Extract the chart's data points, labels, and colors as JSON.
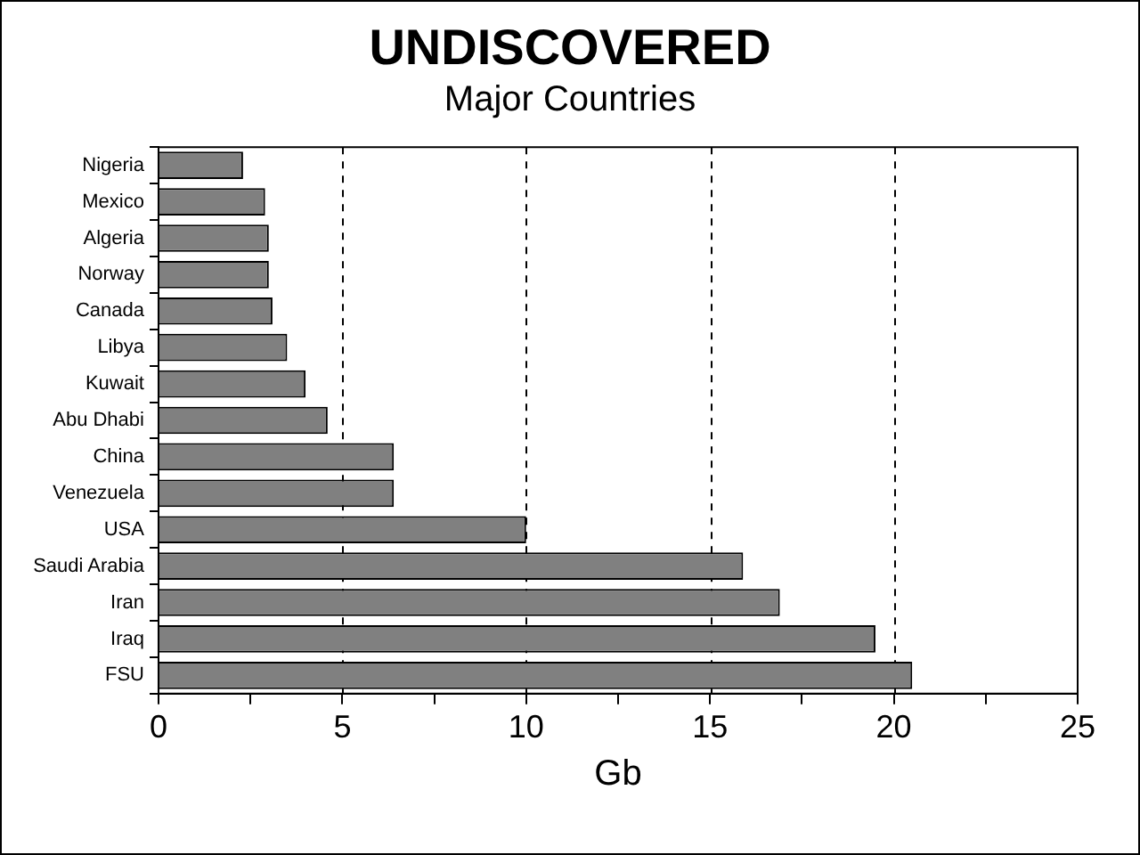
{
  "chart_data": {
    "type": "bar",
    "orientation": "horizontal",
    "title": "UNDISCOVERED",
    "subtitle": "Major Countries",
    "xlabel": "Gb",
    "categories": [
      "Nigeria",
      "Mexico",
      "Algeria",
      "Norway",
      "Canada",
      "Libya",
      "Kuwait",
      "Abu Dhabi",
      "China",
      "Venezuela",
      "USA",
      "Saudi Arabia",
      "Iran",
      "Iraq",
      "FSU"
    ],
    "values": [
      2.3,
      2.9,
      3.0,
      3.0,
      3.1,
      3.5,
      4.0,
      4.6,
      6.4,
      6.4,
      10.0,
      15.9,
      16.9,
      19.5,
      20.5
    ],
    "color": "#808080",
    "xlim": [
      0,
      25
    ],
    "xticks": [
      0,
      {
        "value": 2.5,
        "label": null
      },
      5,
      {
        "value": 7.5,
        "label": null
      },
      10,
      {
        "value": 12.5,
        "label": null
      },
      15,
      {
        "value": 17.5,
        "label": null
      },
      20,
      {
        "value": 22.5,
        "label": null
      },
      25
    ],
    "grid": "x",
    "legend": false
  }
}
